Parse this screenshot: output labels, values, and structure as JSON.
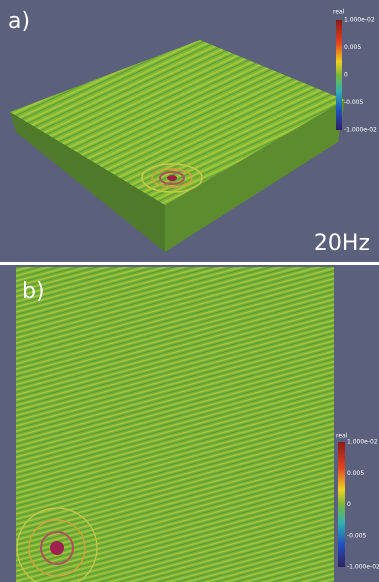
{
  "panels": [
    {
      "label": "a)",
      "annotation": "20Hz",
      "colorbar": {
        "title": "real",
        "ticks": [
          "1.000e-02",
          "0.005",
          "0",
          "-0.005",
          "-1.000e-02"
        ]
      }
    },
    {
      "label": "b)",
      "colorbar": {
        "title": "real",
        "ticks": [
          "1.000e-02",
          "0.005",
          "0",
          "-0.005",
          "-1.000e-02"
        ]
      }
    }
  ]
}
